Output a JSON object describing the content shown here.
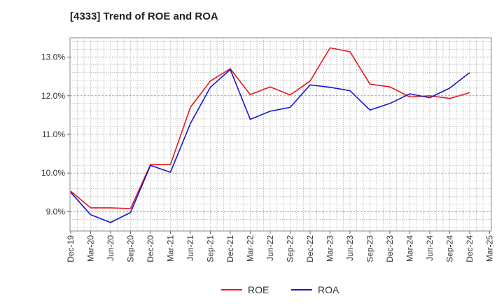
{
  "chart_data": {
    "type": "line",
    "title": "[4333]  Trend of ROE and ROA",
    "xlabel": "",
    "ylabel": "",
    "y_ticks": [
      "9.0%",
      "10.0%",
      "11.0%",
      "12.0%",
      "13.0%"
    ],
    "y_tick_values": [
      9.0,
      10.0,
      11.0,
      12.0,
      13.0
    ],
    "ylim": [
      8.5,
      13.5
    ],
    "x_tick_labels": [
      "Dec-19",
      "Mar-20",
      "Jun-20",
      "Sep-20",
      "Dec-20",
      "Mar-21",
      "Jun-21",
      "Sep-21",
      "Dec-21",
      "Mar-22",
      "Jun-22",
      "Sep-22",
      "Dec-22",
      "Mar-23",
      "Jun-23",
      "Sep-23",
      "Dec-23",
      "Mar-24",
      "Jun-24",
      "Sep-24",
      "Dec-24",
      "Mar-25"
    ],
    "x": [
      "Dec-19",
      "Mar-20",
      "Jun-20",
      "Sep-20",
      "Dec-20",
      "Mar-21",
      "Jun-21",
      "Sep-21",
      "Dec-21",
      "Mar-22",
      "Jun-22",
      "Sep-22",
      "Dec-22",
      "Mar-23",
      "Jun-23",
      "Sep-23",
      "Dec-23",
      "Mar-24",
      "Jun-24",
      "Sep-24",
      "Dec-24"
    ],
    "grid": true,
    "legend_position": "bottom",
    "series": [
      {
        "name": "ROE",
        "color": "#e8191b",
        "values": [
          9.53,
          9.1,
          9.1,
          9.08,
          10.22,
          10.22,
          11.7,
          12.38,
          12.7,
          12.03,
          12.23,
          12.02,
          12.38,
          13.24,
          13.14,
          12.3,
          12.23,
          11.97,
          12.0,
          11.93,
          12.08
        ]
      },
      {
        "name": "ROA",
        "color": "#1417d1",
        "values": [
          9.5,
          8.92,
          8.72,
          8.98,
          10.2,
          10.02,
          11.28,
          12.22,
          12.68,
          11.39,
          11.6,
          11.7,
          12.28,
          12.22,
          12.13,
          11.63,
          11.8,
          12.05,
          11.95,
          12.2,
          12.6
        ]
      }
    ]
  }
}
